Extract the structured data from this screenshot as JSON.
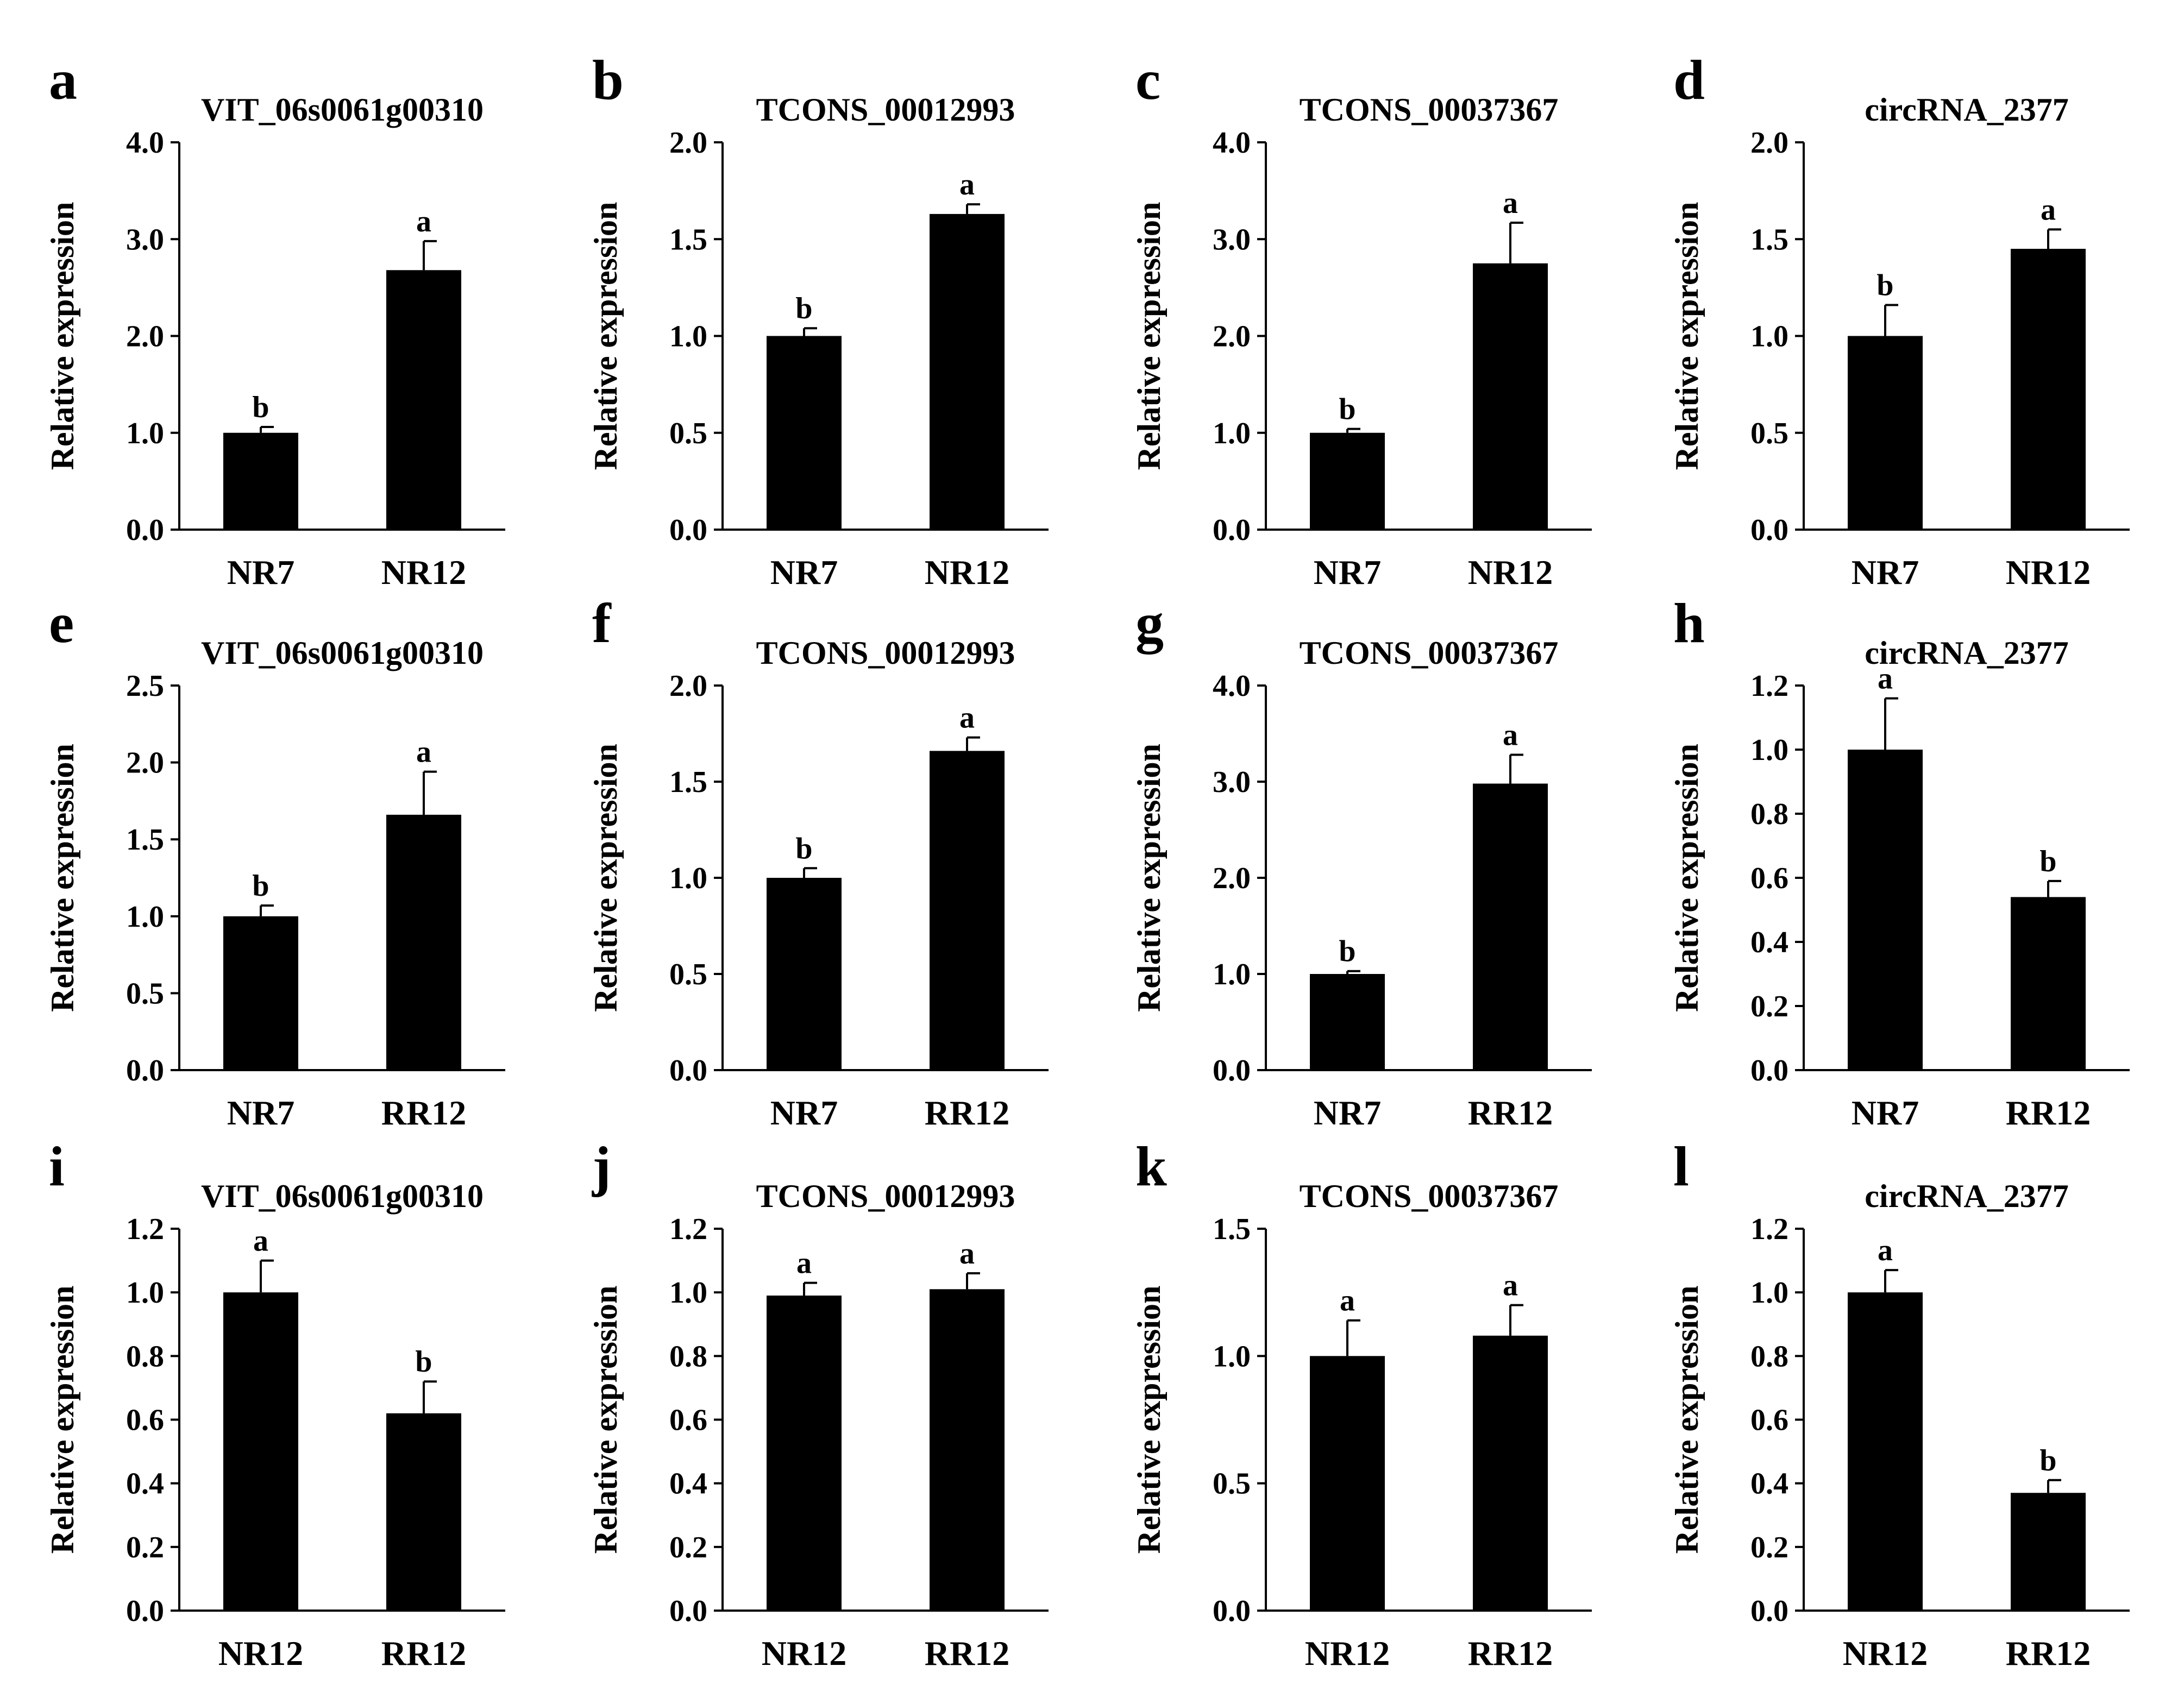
{
  "figure": {
    "domain": "Chart"
  },
  "chart_data": [
    {
      "panel": "a",
      "type": "bar",
      "title": "VIT_06s0061g00310",
      "ylabel": "Relative expression",
      "ylim": [
        0,
        4.0
      ],
      "ticks": [
        "0.0",
        "1.0",
        "2.0",
        "3.0",
        "4.0"
      ],
      "categories": [
        "NR7",
        "NR12"
      ],
      "values": [
        1.0,
        2.68
      ],
      "errors": [
        0.06,
        0.3
      ],
      "letters": [
        "b",
        "a"
      ]
    },
    {
      "panel": "b",
      "type": "bar",
      "title": "TCONS_00012993",
      "ylabel": "Relative expression",
      "ylim": [
        0,
        2.0
      ],
      "ticks": [
        "0.0",
        "0.5",
        "1.0",
        "1.5",
        "2.0"
      ],
      "categories": [
        "NR7",
        "NR12"
      ],
      "values": [
        1.0,
        1.63
      ],
      "errors": [
        0.04,
        0.05
      ],
      "letters": [
        "b",
        "a"
      ]
    },
    {
      "panel": "c",
      "type": "bar",
      "title": "TCONS_00037367",
      "ylabel": "Relative expression",
      "ylim": [
        0,
        4.0
      ],
      "ticks": [
        "0.0",
        "1.0",
        "2.0",
        "3.0",
        "4.0"
      ],
      "categories": [
        "NR7",
        "NR12"
      ],
      "values": [
        1.0,
        2.75
      ],
      "errors": [
        0.04,
        0.42
      ],
      "letters": [
        "b",
        "a"
      ]
    },
    {
      "panel": "d",
      "type": "bar",
      "title": "circRNA_2377",
      "ylabel": "Relative expression",
      "ylim": [
        0,
        2.0
      ],
      "ticks": [
        "0.0",
        "0.5",
        "1.0",
        "1.5",
        "2.0"
      ],
      "categories": [
        "NR7",
        "NR12"
      ],
      "values": [
        1.0,
        1.45
      ],
      "errors": [
        0.16,
        0.1
      ],
      "letters": [
        "b",
        "a"
      ]
    },
    {
      "panel": "e",
      "type": "bar",
      "title": "VIT_06s0061g00310",
      "ylabel": "Relative expression",
      "ylim": [
        0,
        2.5
      ],
      "ticks": [
        "0.0",
        "0.5",
        "1.0",
        "1.5",
        "2.0",
        "2.5"
      ],
      "categories": [
        "NR7",
        "RR12"
      ],
      "values": [
        1.0,
        1.66
      ],
      "errors": [
        0.07,
        0.28
      ],
      "letters": [
        "b",
        "a"
      ]
    },
    {
      "panel": "f",
      "type": "bar",
      "title": "TCONS_00012993",
      "ylabel": "Relative expression",
      "ylim": [
        0,
        2.0
      ],
      "ticks": [
        "0.0",
        "0.5",
        "1.0",
        "1.5",
        "2.0"
      ],
      "categories": [
        "NR7",
        "RR12"
      ],
      "values": [
        1.0,
        1.66
      ],
      "errors": [
        0.05,
        0.07
      ],
      "letters": [
        "b",
        "a"
      ]
    },
    {
      "panel": "g",
      "type": "bar",
      "title": "TCONS_00037367",
      "ylabel": "Relative expression",
      "ylim": [
        0,
        4.0
      ],
      "ticks": [
        "0.0",
        "1.0",
        "2.0",
        "3.0",
        "4.0"
      ],
      "categories": [
        "NR7",
        "RR12"
      ],
      "values": [
        1.0,
        2.98
      ],
      "errors": [
        0.03,
        0.3
      ],
      "letters": [
        "b",
        "a"
      ]
    },
    {
      "panel": "h",
      "type": "bar",
      "title": "circRNA_2377",
      "ylabel": "Relative expression",
      "ylim": [
        0,
        1.2
      ],
      "ticks": [
        "0.0",
        "0.2",
        "0.4",
        "0.6",
        "0.8",
        "1.0",
        "1.2"
      ],
      "categories": [
        "NR7",
        "RR12"
      ],
      "values": [
        1.0,
        0.54
      ],
      "errors": [
        0.16,
        0.05
      ],
      "letters": [
        "a",
        "b"
      ]
    },
    {
      "panel": "i",
      "type": "bar",
      "title": "VIT_06s0061g00310",
      "ylabel": "Relative expression",
      "ylim": [
        0,
        1.2
      ],
      "ticks": [
        "0.0",
        "0.2",
        "0.4",
        "0.6",
        "0.8",
        "1.0",
        "1.2"
      ],
      "categories": [
        "NR12",
        "RR12"
      ],
      "values": [
        1.0,
        0.62
      ],
      "errors": [
        0.1,
        0.1
      ],
      "letters": [
        "a",
        "b"
      ]
    },
    {
      "panel": "j",
      "type": "bar",
      "title": "TCONS_00012993",
      "ylabel": "Relative expression",
      "ylim": [
        0,
        1.2
      ],
      "ticks": [
        "0.0",
        "0.2",
        "0.4",
        "0.6",
        "0.8",
        "1.0",
        "1.2"
      ],
      "categories": [
        "NR12",
        "RR12"
      ],
      "values": [
        0.99,
        1.01
      ],
      "errors": [
        0.04,
        0.05
      ],
      "letters": [
        "a",
        "a"
      ]
    },
    {
      "panel": "k",
      "type": "bar",
      "title": "TCONS_00037367",
      "ylabel": "Relative expression",
      "ylim": [
        0,
        1.5
      ],
      "ticks": [
        "0.0",
        "0.5",
        "1.0",
        "1.5"
      ],
      "categories": [
        "NR12",
        "RR12"
      ],
      "values": [
        1.0,
        1.08
      ],
      "errors": [
        0.14,
        0.12
      ],
      "letters": [
        "a",
        "a"
      ]
    },
    {
      "panel": "l",
      "type": "bar",
      "title": "circRNA_2377",
      "ylabel": "Relative expression",
      "ylim": [
        0,
        1.2
      ],
      "ticks": [
        "0.0",
        "0.2",
        "0.4",
        "0.6",
        "0.8",
        "1.0",
        "1.2"
      ],
      "categories": [
        "NR12",
        "RR12"
      ],
      "values": [
        1.0,
        0.37
      ],
      "errors": [
        0.07,
        0.04
      ],
      "letters": [
        "a",
        "b"
      ]
    }
  ]
}
